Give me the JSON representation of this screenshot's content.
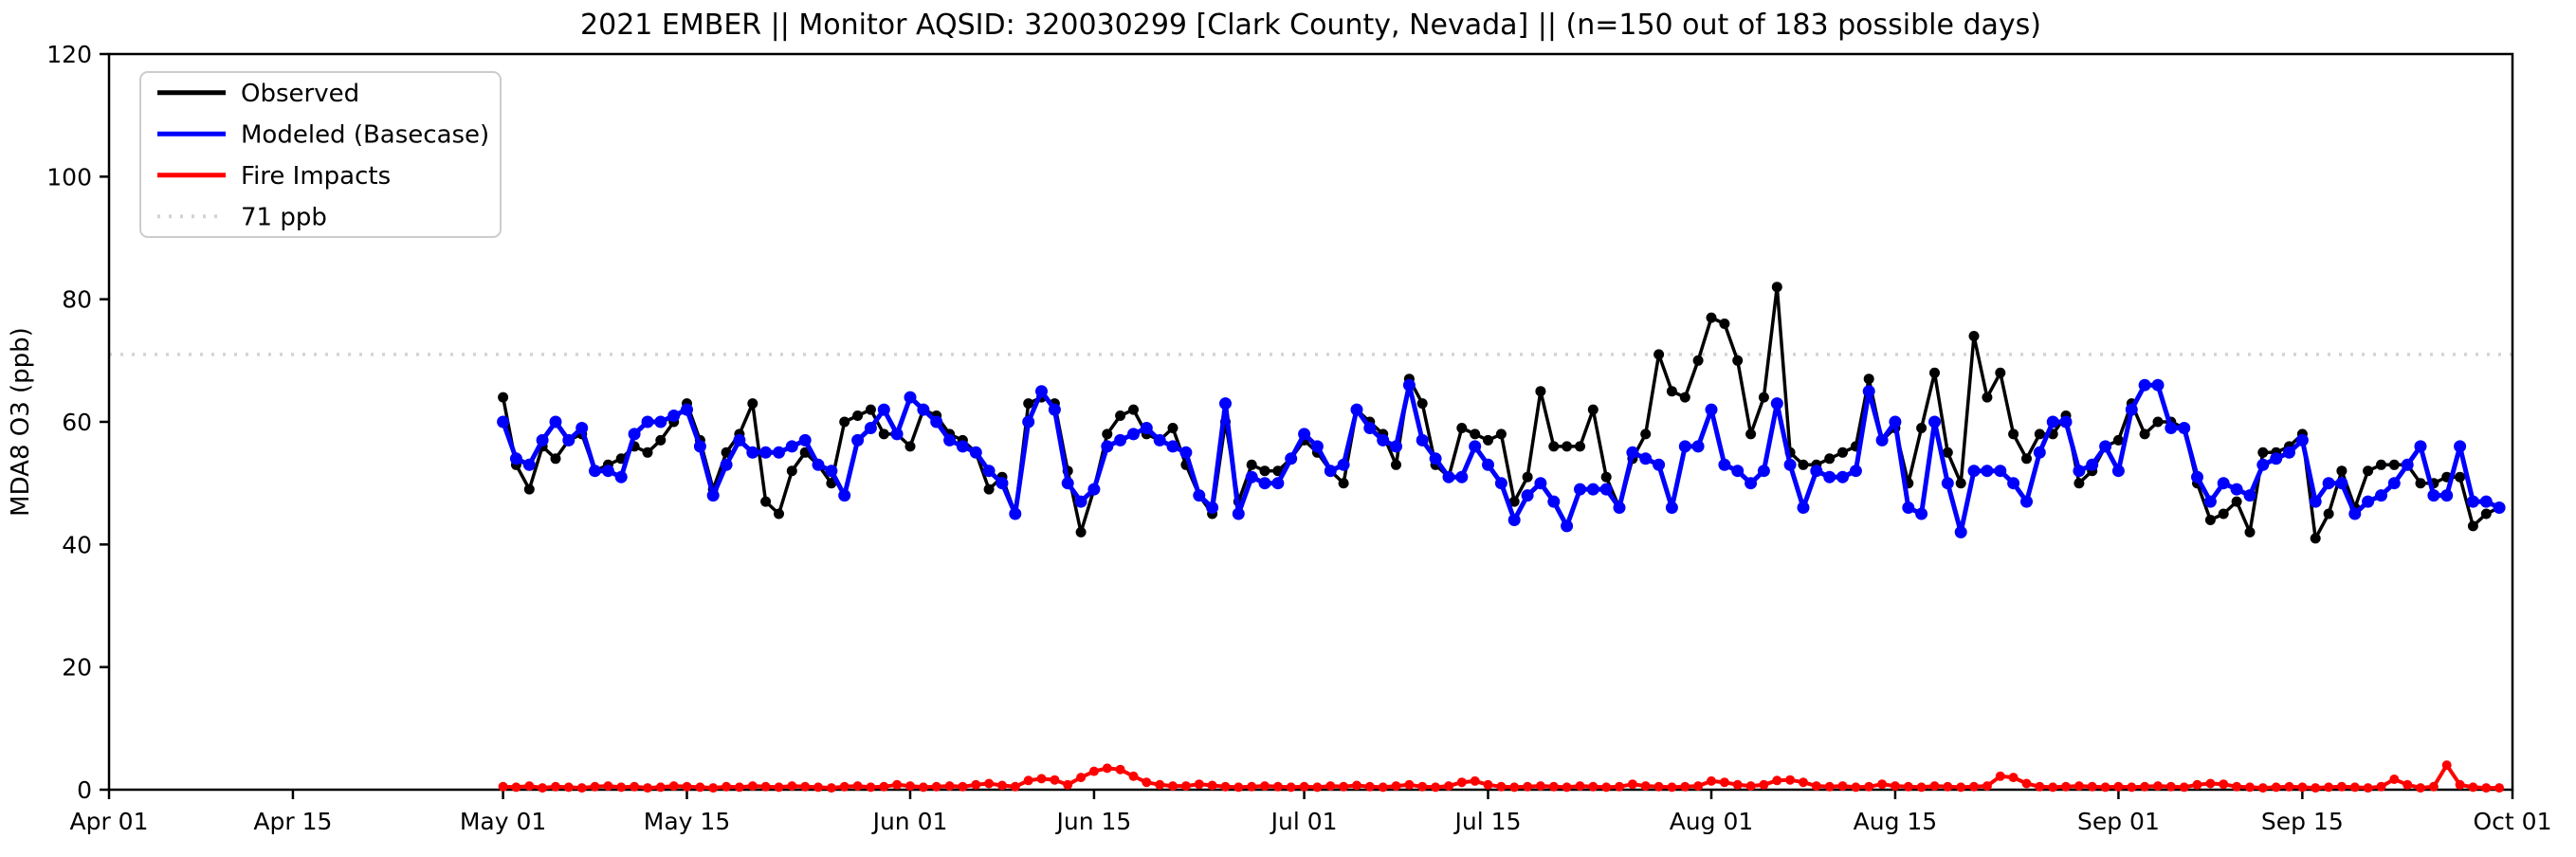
{
  "chart_data": {
    "type": "line",
    "title": "2021 EMBER || Monitor AQSID: 320030299 [Clark County, Nevada] || (n=150 out of 183 possible days)",
    "ylabel": "MDA8 O3 (ppb)",
    "ylim": [
      0,
      120
    ],
    "yticks": [
      0,
      20,
      40,
      60,
      80,
      100,
      120
    ],
    "xtick_labels": [
      "Apr 01",
      "Apr 15",
      "May 01",
      "May 15",
      "Jun 01",
      "Jun 15",
      "Jul 01",
      "Jul 15",
      "Aug 01",
      "Aug 15",
      "Sep 01",
      "Sep 15",
      "Oct 01"
    ],
    "xtick_days": [
      0,
      14,
      30,
      44,
      61,
      75,
      91,
      105,
      122,
      136,
      153,
      167,
      183
    ],
    "x_range_days": [
      0,
      183
    ],
    "data_start_day": 30,
    "grid": false,
    "legend_position": "upper-left",
    "threshold": {
      "value": 71,
      "label": "71 ppb",
      "color": "#d3d3d3",
      "style": "dotted"
    },
    "legend": [
      {
        "label": "Observed",
        "color": "#000000",
        "style": "solid"
      },
      {
        "label": "Modeled (Basecase)",
        "color": "#0000ff",
        "style": "solid"
      },
      {
        "label": "Fire Impacts",
        "color": "#ff0000",
        "style": "solid"
      },
      {
        "label": "71 ppb",
        "color": "#d3d3d3",
        "style": "dotted"
      }
    ],
    "series": [
      {
        "name": "Observed",
        "color": "#000000",
        "values": [
          64,
          53,
          49,
          56,
          54,
          57,
          58,
          52,
          53,
          54,
          56,
          55,
          57,
          60,
          63,
          57,
          49,
          55,
          58,
          63,
          47,
          45,
          52,
          55,
          53,
          50,
          60,
          61,
          62,
          58,
          58,
          56,
          62,
          61,
          58,
          57,
          55,
          49,
          51,
          45,
          63,
          64,
          63,
          52,
          42,
          49,
          58,
          61,
          62,
          58,
          57,
          59,
          53,
          48,
          45,
          60,
          47,
          53,
          52,
          52,
          54,
          57,
          55,
          52,
          50,
          62,
          60,
          58,
          53,
          67,
          63,
          53,
          51,
          59,
          58,
          57,
          58,
          47,
          51,
          65,
          56,
          56,
          56,
          62,
          51,
          46,
          54,
          58,
          71,
          65,
          64,
          70,
          77,
          76,
          70,
          58,
          64,
          82,
          55,
          53,
          53,
          54,
          55,
          56,
          67,
          57,
          59,
          50,
          59,
          68,
          55,
          50,
          74,
          64,
          68,
          58,
          54,
          58,
          58,
          61,
          50,
          52,
          56,
          57,
          63,
          58,
          60,
          60,
          59,
          50,
          44,
          45,
          47,
          42,
          55,
          55,
          56,
          58,
          41,
          45,
          52,
          46,
          52,
          53,
          53,
          53,
          50,
          50,
          51,
          51,
          43,
          45,
          46
        ]
      },
      {
        "name": "Modeled (Basecase)",
        "color": "#0000ff",
        "values": [
          60,
          54,
          53,
          57,
          60,
          57,
          59,
          52,
          52,
          51,
          58,
          60,
          60,
          61,
          62,
          56,
          48,
          53,
          57,
          55,
          55,
          55,
          56,
          57,
          53,
          52,
          48,
          57,
          59,
          62,
          58,
          64,
          62,
          60,
          57,
          56,
          55,
          52,
          50,
          45,
          60,
          65,
          62,
          50,
          47,
          49,
          56,
          57,
          58,
          59,
          57,
          56,
          55,
          48,
          46,
          63,
          45,
          51,
          50,
          50,
          54,
          58,
          56,
          52,
          53,
          62,
          59,
          57,
          56,
          66,
          57,
          54,
          51,
          51,
          56,
          53,
          50,
          44,
          48,
          50,
          47,
          43,
          49,
          49,
          49,
          46,
          55,
          54,
          53,
          46,
          56,
          56,
          62,
          53,
          52,
          50,
          52,
          63,
          53,
          46,
          52,
          51,
          51,
          52,
          65,
          57,
          60,
          46,
          45,
          60,
          50,
          42,
          52,
          52,
          52,
          50,
          47,
          55,
          60,
          60,
          52,
          53,
          56,
          52,
          62,
          66,
          66,
          59,
          59,
          51,
          47,
          50,
          49,
          48,
          53,
          54,
          55,
          57,
          47,
          50,
          50,
          45,
          47,
          48,
          50,
          53,
          56,
          48,
          48,
          56,
          47,
          47,
          46
        ]
      },
      {
        "name": "Fire Impacts",
        "color": "#ff0000",
        "values": [
          0.5,
          0.4,
          0.6,
          0.3,
          0.5,
          0.4,
          0.3,
          0.5,
          0.6,
          0.4,
          0.5,
          0.3,
          0.4,
          0.6,
          0.5,
          0.4,
          0.3,
          0.5,
          0.4,
          0.6,
          0.5,
          0.4,
          0.6,
          0.5,
          0.4,
          0.3,
          0.5,
          0.6,
          0.4,
          0.5,
          0.8,
          0.6,
          0.4,
          0.5,
          0.6,
          0.5,
          0.8,
          1.0,
          0.7,
          0.5,
          1.5,
          1.8,
          1.6,
          0.8,
          2.0,
          3.0,
          3.5,
          3.3,
          2.2,
          1.2,
          0.8,
          0.6,
          0.6,
          0.9,
          0.7,
          0.5,
          0.4,
          0.5,
          0.6,
          0.5,
          0.4,
          0.5,
          0.4,
          0.6,
          0.5,
          0.7,
          0.5,
          0.4,
          0.6,
          0.8,
          0.5,
          0.4,
          0.6,
          1.2,
          1.4,
          0.8,
          0.5,
          0.4,
          0.5,
          0.6,
          0.5,
          0.4,
          0.6,
          0.5,
          0.4,
          0.5,
          0.9,
          0.6,
          0.5,
          0.4,
          0.5,
          0.6,
          1.4,
          1.2,
          0.8,
          0.6,
          0.8,
          1.5,
          1.6,
          1.2,
          0.6,
          0.5,
          0.6,
          0.4,
          0.5,
          0.9,
          0.6,
          0.5,
          0.4,
          0.6,
          0.5,
          0.4,
          0.5,
          0.6,
          2.2,
          2.0,
          1.0,
          0.5,
          0.4,
          0.5,
          0.6,
          0.5,
          0.4,
          0.5,
          0.4,
          0.5,
          0.6,
          0.5,
          0.4,
          0.8,
          1.0,
          0.9,
          0.5,
          0.4,
          0.3,
          0.4,
          0.5,
          0.4,
          0.3,
          0.4,
          0.5,
          0.4,
          0.3,
          0.5,
          1.7,
          0.8,
          0.3,
          0.5,
          4.0,
          0.8,
          0.4,
          0.3,
          0.3
        ]
      }
    ]
  }
}
